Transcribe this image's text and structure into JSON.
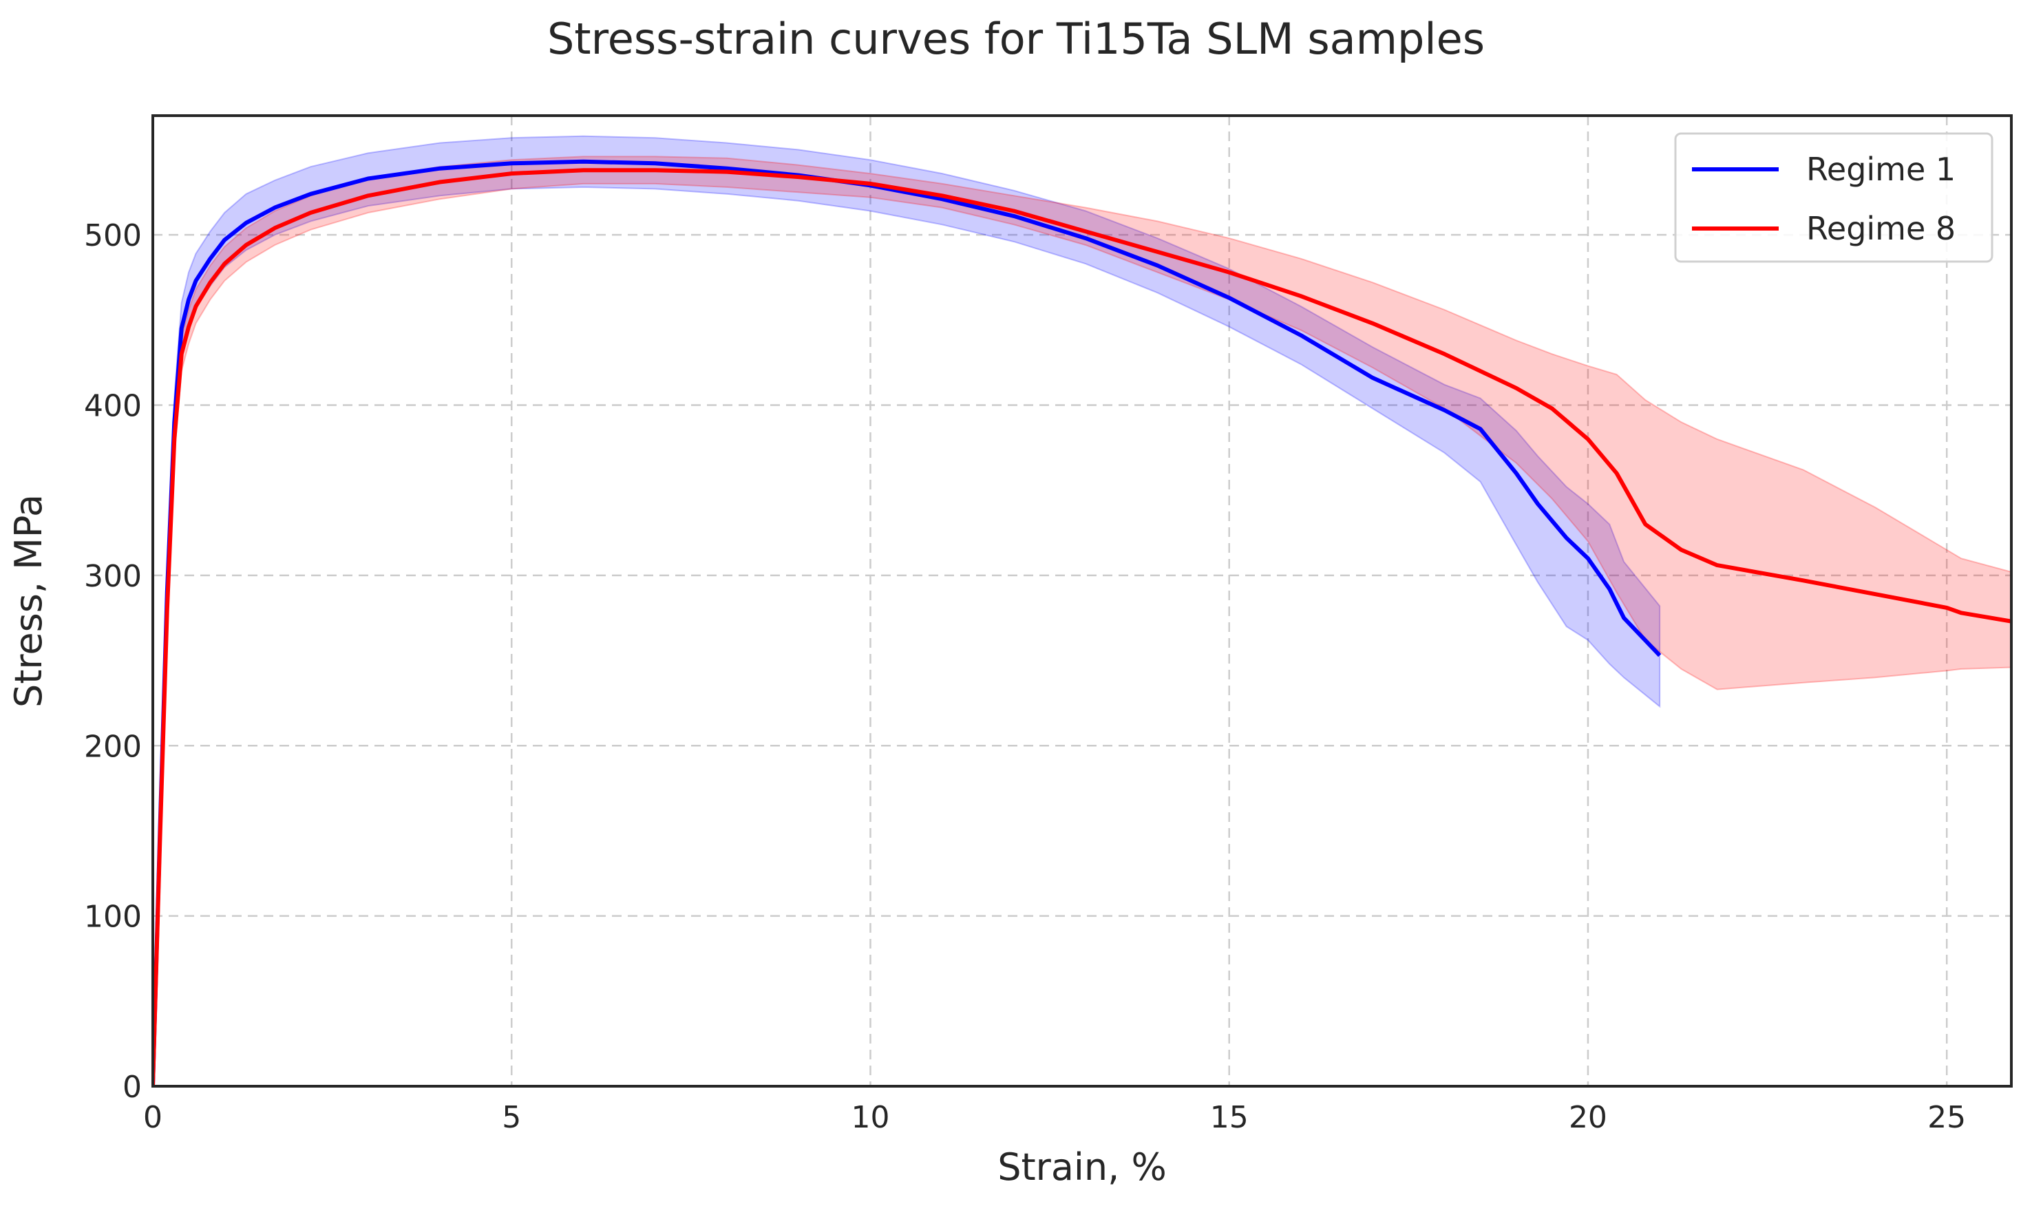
{
  "chart_data": {
    "type": "line",
    "title": "Stress-strain curves for Ti15Ta SLM samples",
    "xlabel": "Strain, %",
    "ylabel": "Stress, MPa",
    "xlim": [
      0,
      25.9
    ],
    "ylim": [
      0,
      570
    ],
    "xticks": [
      0,
      5,
      10,
      15,
      20,
      25
    ],
    "yticks": [
      0,
      100,
      200,
      300,
      400,
      500
    ],
    "grid": true,
    "legend_position": "top-right",
    "series": [
      {
        "name": "Regime 1",
        "color": "#0000ff",
        "band_color": "#0000ff",
        "x": [
          0,
          0.1,
          0.2,
          0.3,
          0.4,
          0.5,
          0.6,
          0.8,
          1.0,
          1.3,
          1.7,
          2.2,
          3,
          4,
          5,
          6,
          7,
          8,
          9,
          10,
          11,
          12,
          13,
          14,
          15,
          16,
          17,
          18,
          18.5,
          19,
          19.3,
          19.7,
          20,
          20.3,
          20.5,
          21
        ],
        "y": [
          0,
          150,
          290,
          390,
          445,
          462,
          473,
          486,
          497,
          507,
          516,
          524,
          533,
          539,
          542,
          543,
          542,
          539,
          535,
          529,
          521,
          511,
          498,
          482,
          463,
          441,
          416,
          397,
          386,
          360,
          342,
          322,
          310,
          292,
          275,
          253
        ],
        "upper": [
          0,
          160,
          305,
          405,
          460,
          478,
          489,
          502,
          513,
          524,
          532,
          540,
          548,
          554,
          557,
          558,
          557,
          554,
          550,
          544,
          536,
          526,
          514,
          498,
          480,
          458,
          434,
          412,
          404,
          385,
          370,
          352,
          342,
          330,
          308,
          282
        ],
        "lower": [
          0,
          140,
          275,
          375,
          430,
          446,
          457,
          470,
          481,
          491,
          500,
          508,
          517,
          523,
          527,
          528,
          527,
          524,
          520,
          514,
          506,
          496,
          483,
          466,
          446,
          424,
          398,
          372,
          355,
          318,
          296,
          270,
          262,
          248,
          240,
          223
        ]
      },
      {
        "name": "Regime 8",
        "color": "#ff0000",
        "band_color": "#ff0000",
        "x": [
          0,
          0.1,
          0.2,
          0.3,
          0.4,
          0.5,
          0.6,
          0.8,
          1.0,
          1.3,
          1.7,
          2.2,
          3,
          4,
          5,
          6,
          7,
          8,
          9,
          10,
          11,
          12,
          13,
          14,
          15,
          16,
          17,
          18,
          18.5,
          19,
          19.5,
          20,
          20.4,
          20.8,
          21.3,
          21.8,
          23,
          24,
          25,
          25.2,
          25.9
        ],
        "y": [
          0,
          145,
          280,
          380,
          430,
          446,
          458,
          472,
          483,
          494,
          504,
          513,
          523,
          531,
          536,
          538,
          538,
          537,
          534,
          530,
          523,
          514,
          502,
          490,
          478,
          464,
          448,
          430,
          420,
          410,
          398,
          380,
          360,
          330,
          315,
          306,
          297,
          289,
          281,
          278,
          273
        ],
        "upper": [
          0,
          150,
          290,
          390,
          440,
          456,
          468,
          482,
          493,
          504,
          514,
          523,
          533,
          540,
          544,
          546,
          546,
          545,
          541,
          536,
          530,
          523,
          516,
          508,
          498,
          486,
          472,
          456,
          447,
          438,
          430,
          423,
          418,
          403,
          390,
          380,
          362,
          340,
          315,
          310,
          302
        ],
        "lower": [
          0,
          140,
          270,
          370,
          420,
          436,
          448,
          462,
          473,
          484,
          494,
          503,
          513,
          521,
          527,
          530,
          530,
          528,
          525,
          522,
          516,
          506,
          494,
          478,
          462,
          444,
          422,
          398,
          382,
          366,
          345,
          320,
          290,
          262,
          245,
          233,
          237,
          240,
          244,
          245,
          246
        ]
      }
    ]
  }
}
